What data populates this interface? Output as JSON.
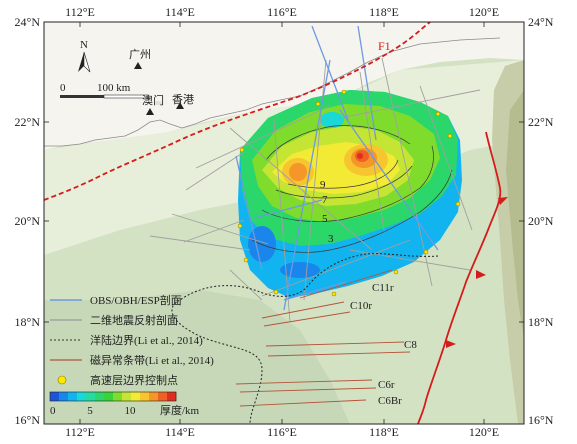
{
  "axes": {
    "top_lon_labels": [
      "112°E",
      "114°E",
      "116°E",
      "118°E",
      "120°E"
    ],
    "bottom_lon_labels": [
      "112°E",
      "114°E",
      "116°E",
      "118°E",
      "120°E"
    ],
    "left_lat_labels": [
      "24°N",
      "22°N",
      "20°N",
      "18°N",
      "16°N"
    ],
    "right_lat_labels": [
      "24°N",
      "22°N",
      "20°N",
      "18°N",
      "16°N"
    ]
  },
  "north_arrow": {
    "label": "N"
  },
  "scale_bar": {
    "zero": "0",
    "distance": "100 km"
  },
  "places": [
    {
      "name": "广州"
    },
    {
      "name": "澳门"
    },
    {
      "name": "香港"
    }
  ],
  "fault_label": "F1",
  "contour_labels": [
    "9",
    "7",
    "5",
    "3"
  ],
  "anomaly_labels": [
    "C11r",
    "C10r",
    "C8",
    "C6r",
    "C6Br"
  ],
  "legend": {
    "items": [
      {
        "label": "OBS/OBH/ESP剖面",
        "color": "#6c9ae0"
      },
      {
        "label": "二维地震反射剖面",
        "color": "#9a9a9a"
      },
      {
        "label": "洋陆边界(Li et al., 2014)",
        "color": "#333333"
      },
      {
        "label": "磁异常条带(Li et al., 2014)",
        "color": "#b4553a"
      },
      {
        "label": "高速层边界控制点",
        "color": "#ffe800"
      }
    ],
    "colorbar": {
      "ticks": [
        "0",
        "5",
        "10"
      ],
      "unit_label": "厚度/km",
      "colors": [
        "#1d55d6",
        "#1a86ec",
        "#12b4f0",
        "#19d8d6",
        "#25dba0",
        "#2bd66a",
        "#38d33a",
        "#7fdc2c",
        "#c5e534",
        "#f3ea35",
        "#f6c52f",
        "#f59628",
        "#ef6122",
        "#df2e1f"
      ]
    }
  }
}
